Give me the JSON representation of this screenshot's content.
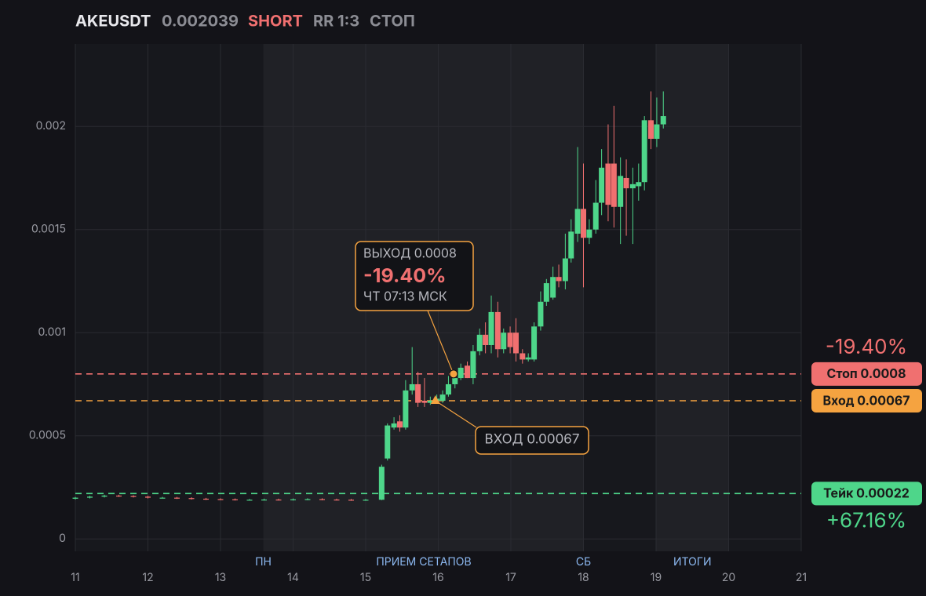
{
  "header": {
    "symbol": "AKEUSDT",
    "price": "0.002039",
    "side": "SHORT",
    "rr": "RR 1:3",
    "status": "СТОП"
  },
  "chart_data": {
    "type": "candlestick",
    "xlim": [
      11,
      21
    ],
    "xticks": [
      11,
      12,
      13,
      14,
      15,
      16,
      17,
      18,
      19,
      20,
      21
    ],
    "ylim": [
      -6e-05,
      0.0024
    ],
    "yticks": [
      0,
      0.0005,
      0.001,
      0.0015,
      0.002
    ],
    "grid": true,
    "up_color": "#4ed68a",
    "down_color": "#f07070",
    "shaded": [
      [
        13.59,
        18
      ],
      [
        19,
        20
      ]
    ],
    "sessions": [
      {
        "label": "ПН",
        "x": 13.59
      },
      {
        "label": "ПРИЕМ СЕТАПОВ",
        "x": 15.8
      },
      {
        "label": "СБ",
        "x": 18
      },
      {
        "label": "ИТОГИ",
        "x": 19.5
      }
    ],
    "candles": {
      "x": [
        11.0,
        11.2,
        11.4,
        11.6,
        11.8,
        12.0,
        12.2,
        12.4,
        12.6,
        12.8,
        13.0,
        13.2,
        13.4,
        13.6,
        13.8,
        14.0,
        14.2,
        14.4,
        14.6,
        14.8,
        15.0,
        15.22,
        15.3,
        15.39,
        15.47,
        15.55,
        15.64,
        15.72,
        15.81,
        15.89,
        15.98,
        16.06,
        16.14,
        16.23,
        16.31,
        16.4,
        16.48,
        16.57,
        16.65,
        16.73,
        16.82,
        16.9,
        16.99,
        17.07,
        17.16,
        17.24,
        17.32,
        17.41,
        17.49,
        17.58,
        17.66,
        17.75,
        17.83,
        17.92,
        18.0,
        18.08,
        18.17,
        18.25,
        18.34,
        18.42,
        18.51,
        18.59,
        18.68,
        18.76,
        18.84,
        18.93,
        19.01,
        19.1
      ],
      "open": [
        0.000195,
        0.0002,
        0.000205,
        0.00021,
        0.000208,
        0.000205,
        0.0002,
        0.0002,
        0.000198,
        0.000195,
        0.000193,
        0.000192,
        0.00019,
        0.00019,
        0.000191,
        0.00019,
        0.000192,
        0.000193,
        0.000191,
        0.00019,
        0.000189,
        0.00019,
        0.00039,
        0.00054,
        0.00057,
        0.00054,
        0.00072,
        0.00075,
        0.00067,
        0.00066,
        0.00067,
        0.00067,
        0.0007,
        0.00075,
        0.00078,
        0.00084,
        0.00078,
        0.00091,
        0.00099,
        0.00094,
        0.0011,
        0.00092,
        0.001,
        0.001,
        0.0009,
        0.00087,
        0.00087,
        0.00103,
        0.00115,
        0.00117,
        0.00127,
        0.00125,
        0.00136,
        0.00148,
        0.0016,
        0.00146,
        0.0015,
        0.00163,
        0.00182,
        0.00182,
        0.00161,
        0.00175,
        0.0017,
        0.00171,
        0.00173,
        0.00203,
        0.00194,
        0.00201
      ],
      "close": [
        0.0002,
        0.000205,
        0.00021,
        0.000208,
        0.000205,
        0.0002,
        0.0002,
        0.000198,
        0.000195,
        0.000193,
        0.000192,
        0.00019,
        0.00019,
        0.000191,
        0.00019,
        0.000192,
        0.000193,
        0.000191,
        0.00019,
        0.000189,
        0.00019,
        0.00035,
        0.00055,
        0.00056,
        0.00054,
        0.00072,
        0.00075,
        0.00066,
        0.00066,
        0.00067,
        0.00068,
        0.0007,
        0.00075,
        0.00078,
        0.00083,
        0.00078,
        0.00091,
        0.00099,
        0.00094,
        0.0011,
        0.00092,
        0.001,
        0.00093,
        0.0009,
        0.00087,
        0.00088,
        0.00103,
        0.00115,
        0.00124,
        0.00127,
        0.00125,
        0.00136,
        0.00149,
        0.0016,
        0.00146,
        0.0015,
        0.00163,
        0.0018,
        0.00162,
        0.00161,
        0.00176,
        0.0017,
        0.00172,
        0.00173,
        0.00203,
        0.00194,
        0.00201,
        0.00205
      ],
      "high": [
        0.000204,
        0.000209,
        0.000214,
        0.000214,
        0.000212,
        0.000209,
        0.000204,
        0.000204,
        0.000202,
        0.000199,
        0.000197,
        0.000196,
        0.000194,
        0.000195,
        0.000195,
        0.000196,
        0.000197,
        0.000197,
        0.000195,
        0.000194,
        0.000194,
        0.00036,
        0.00056,
        0.00059,
        0.0006,
        0.00077,
        0.00093,
        0.00081,
        0.00078,
        0.00069,
        0.0007,
        0.00072,
        0.00079,
        0.0008,
        0.00085,
        0.00086,
        0.00094,
        0.00102,
        0.00105,
        0.00118,
        0.00115,
        0.00102,
        0.00103,
        0.00107,
        0.00092,
        0.0009,
        0.00105,
        0.0012,
        0.00126,
        0.00132,
        0.00133,
        0.00148,
        0.00155,
        0.0019,
        0.00182,
        0.00155,
        0.00174,
        0.00189,
        0.00201,
        0.0021,
        0.00185,
        0.00184,
        0.0018,
        0.00182,
        0.00205,
        0.00217,
        0.00214,
        0.00217
      ],
      "low": [
        0.000191,
        0.000196,
        0.000201,
        0.000204,
        0.000201,
        0.000196,
        0.000196,
        0.000194,
        0.000191,
        0.000189,
        0.000188,
        0.000186,
        0.000186,
        0.000186,
        0.000186,
        0.000186,
        0.000188,
        0.000187,
        0.000186,
        0.000185,
        0.000185,
        0.000188,
        0.00038,
        0.00053,
        0.00052,
        0.00053,
        0.0007,
        0.00064,
        0.00064,
        0.00065,
        0.00066,
        0.00066,
        0.00069,
        0.00073,
        0.00077,
        0.00078,
        0.00075,
        0.00089,
        0.0009,
        0.0009,
        0.00088,
        0.0009,
        0.0009,
        0.00086,
        0.00085,
        0.00086,
        0.00086,
        0.00101,
        0.00113,
        0.00116,
        0.00122,
        0.00121,
        0.00134,
        0.00144,
        0.00122,
        0.00143,
        0.00148,
        0.00157,
        0.00154,
        0.00151,
        0.00143,
        0.00147,
        0.00143,
        0.00164,
        0.00169,
        0.00189,
        0.0019,
        0.00199
      ]
    },
    "levels": [
      {
        "label": "Стоп 0.0008",
        "value": 0.0008,
        "color": "#f07070"
      },
      {
        "label": "Вход 0.00067",
        "value": 0.00067,
        "color": "#f5a340"
      },
      {
        "label": "Тейк 0.00022",
        "value": 0.00022,
        "color": "#4ed68a"
      }
    ],
    "result": {
      "value": -19.4,
      "label": "-19.40%"
    },
    "take_result": {
      "value": 67.16,
      "label": "+67.16%"
    },
    "exit": {
      "title": "ВЫХОД 0.0008",
      "time": "ЧТ 07:13 МСК",
      "x": 16.21,
      "y": 0.0008
    },
    "entry": {
      "title": "ВХОД 0.00067",
      "x": 15.96,
      "y": 0.00067
    }
  }
}
